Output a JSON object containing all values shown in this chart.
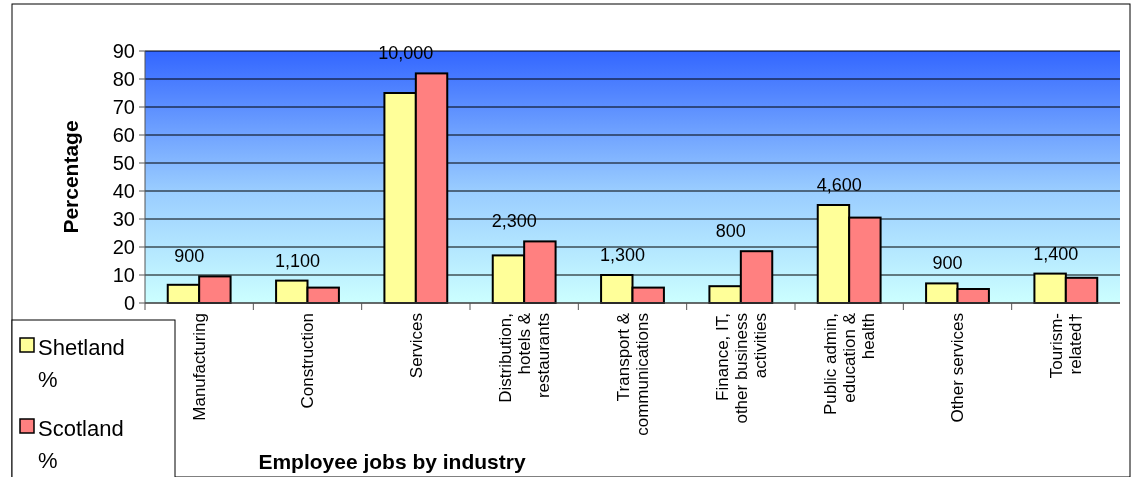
{
  "chart_data": {
    "type": "bar",
    "xlabel": "Employee jobs by industry",
    "ylabel": "Percentage",
    "categories": [
      "Manufacturing",
      "Construction",
      "Services",
      "Distribution, hotels & restaurants",
      "Transport & communications",
      "Finance, IT, other business activities",
      "Public admin, education & health",
      "Other services",
      "Tourism-related†"
    ],
    "series": [
      {
        "name": "Shetland %",
        "color": "#ffff99",
        "values": [
          6.5,
          8,
          75,
          17,
          10,
          6,
          35,
          7,
          10.5
        ]
      },
      {
        "name": "Scotland %",
        "color": "#ff8080",
        "values": [
          9.5,
          5.5,
          82,
          22,
          5.5,
          18.5,
          30.5,
          5,
          9
        ]
      }
    ],
    "ylim": [
      0,
      90
    ],
    "yticks": [
      0,
      10,
      20,
      30,
      40,
      50,
      60,
      70,
      80,
      90
    ],
    "grid": "y",
    "legend": "bottom left",
    "annotations": [
      "900",
      "1,100",
      "10,000",
      "2,300",
      "1,300",
      "800",
      "4,600",
      "900",
      "1,400"
    ]
  }
}
